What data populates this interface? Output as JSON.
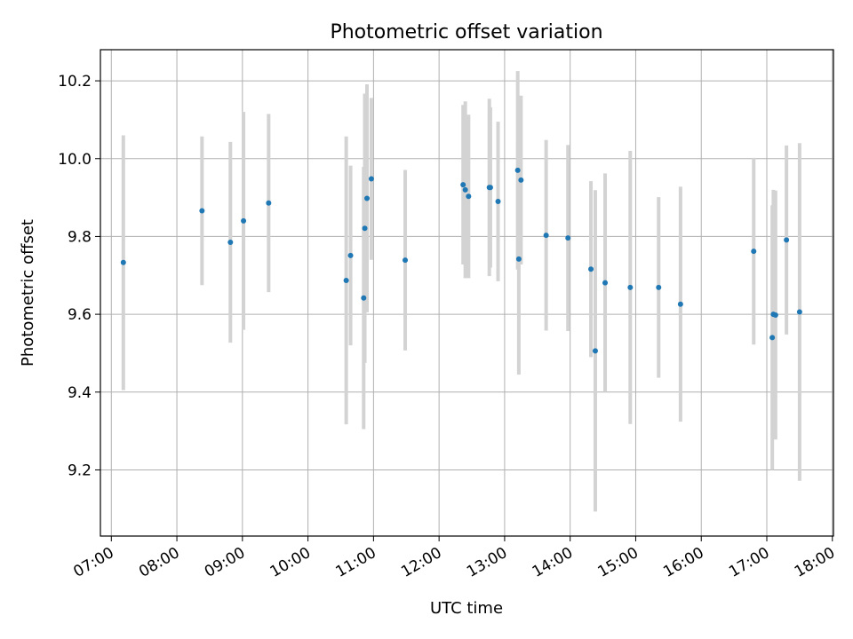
{
  "chart_data": {
    "type": "scatter",
    "title": "Photometric offset variation",
    "xlabel": "UTC time",
    "ylabel": "Photometric offset",
    "x_ticks": [
      "07:00",
      "08:00",
      "09:00",
      "10:00",
      "11:00",
      "12:00",
      "13:00",
      "14:00",
      "15:00",
      "16:00",
      "17:00",
      "18:00"
    ],
    "y_ticks": [
      "9.2",
      "9.4",
      "9.6",
      "9.8",
      "10.0",
      "10.2"
    ],
    "xlim": [
      "06:50",
      "18:01"
    ],
    "ylim": [
      9.03,
      10.28
    ],
    "grid": true,
    "colors": {
      "marker": "#1f77b4",
      "errorbar": "#d3d3d3"
    },
    "points": [
      {
        "t": "07:11",
        "y": 9.733,
        "lo": 9.405,
        "hi": 10.06
      },
      {
        "t": "08:23",
        "y": 9.866,
        "lo": 9.675,
        "hi": 10.057
      },
      {
        "t": "08:49",
        "y": 9.785,
        "lo": 9.527,
        "hi": 10.043
      },
      {
        "t": "09:01",
        "y": 9.84,
        "lo": 9.56,
        "hi": 10.12
      },
      {
        "t": "09:24",
        "y": 9.886,
        "lo": 9.657,
        "hi": 10.115
      },
      {
        "t": "10:35",
        "y": 9.687,
        "lo": 9.317,
        "hi": 10.057
      },
      {
        "t": "10:39",
        "y": 9.751,
        "lo": 9.52,
        "hi": 9.982
      },
      {
        "t": "10:51",
        "y": 9.642,
        "lo": 9.305,
        "hi": 9.979
      },
      {
        "t": "10:52",
        "y": 9.821,
        "lo": 9.475,
        "hi": 10.167
      },
      {
        "t": "10:54",
        "y": 9.898,
        "lo": 9.605,
        "hi": 10.191
      },
      {
        "t": "10:58",
        "y": 9.948,
        "lo": 9.74,
        "hi": 10.156
      },
      {
        "t": "11:29",
        "y": 9.739,
        "lo": 9.507,
        "hi": 9.971
      },
      {
        "t": "12:22",
        "y": 9.933,
        "lo": 9.728,
        "hi": 10.138
      },
      {
        "t": "12:24",
        "y": 9.92,
        "lo": 9.693,
        "hi": 10.147
      },
      {
        "t": "12:27",
        "y": 9.903,
        "lo": 9.693,
        "hi": 10.113
      },
      {
        "t": "12:46",
        "y": 9.926,
        "lo": 9.698,
        "hi": 10.154
      },
      {
        "t": "12:47",
        "y": 9.926,
        "lo": 9.72,
        "hi": 10.132
      },
      {
        "t": "12:54",
        "y": 9.89,
        "lo": 9.685,
        "hi": 10.095
      },
      {
        "t": "13:12",
        "y": 9.97,
        "lo": 9.715,
        "hi": 10.225
      },
      {
        "t": "13:13",
        "y": 9.742,
        "lo": 9.445,
        "hi": 10.039
      },
      {
        "t": "13:15",
        "y": 9.945,
        "lo": 9.728,
        "hi": 10.162
      },
      {
        "t": "13:38",
        "y": 9.803,
        "lo": 9.558,
        "hi": 10.048
      },
      {
        "t": "13:58",
        "y": 9.796,
        "lo": 9.557,
        "hi": 10.035
      },
      {
        "t": "14:19",
        "y": 9.716,
        "lo": 9.49,
        "hi": 9.942
      },
      {
        "t": "14:23",
        "y": 9.506,
        "lo": 9.093,
        "hi": 9.919
      },
      {
        "t": "14:32",
        "y": 9.681,
        "lo": 9.4,
        "hi": 9.962
      },
      {
        "t": "14:55",
        "y": 9.669,
        "lo": 9.318,
        "hi": 10.02
      },
      {
        "t": "15:21",
        "y": 9.669,
        "lo": 9.437,
        "hi": 9.901
      },
      {
        "t": "15:41",
        "y": 9.626,
        "lo": 9.324,
        "hi": 9.928
      },
      {
        "t": "16:48",
        "y": 9.762,
        "lo": 9.522,
        "hi": 10.002
      },
      {
        "t": "17:05",
        "y": 9.54,
        "lo": 9.2,
        "hi": 9.88
      },
      {
        "t": "17:06",
        "y": 9.6,
        "lo": 9.28,
        "hi": 9.92
      },
      {
        "t": "17:08",
        "y": 9.598,
        "lo": 9.278,
        "hi": 9.918
      },
      {
        "t": "17:18",
        "y": 9.791,
        "lo": 9.548,
        "hi": 10.034
      },
      {
        "t": "17:30",
        "y": 9.606,
        "lo": 9.172,
        "hi": 10.04
      }
    ]
  }
}
